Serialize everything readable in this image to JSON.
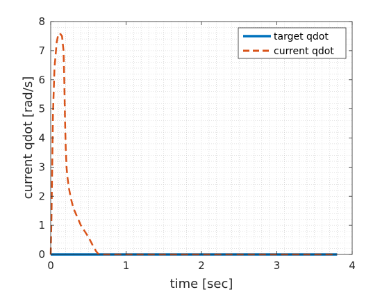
{
  "chart_data": {
    "type": "line",
    "xlabel": "time [sec]",
    "ylabel": "current qdot [rad/s]",
    "xlim": [
      0,
      4
    ],
    "ylim": [
      0,
      8
    ],
    "x_ticks": [
      "0",
      "1",
      "2",
      "3",
      "4"
    ],
    "y_ticks": [
      "0",
      "1",
      "2",
      "3",
      "4",
      "5",
      "6",
      "7",
      "8"
    ],
    "grid": "minor dotted",
    "legend_position": "top-right",
    "series": [
      {
        "name": "target qdot",
        "color": "#0072bd",
        "style": "solid",
        "x": [
          0,
          3.8
        ],
        "y": [
          0,
          0
        ]
      },
      {
        "name": "current qdot",
        "color": "#d95319",
        "style": "dashed",
        "x": [
          0,
          0.01,
          0.02,
          0.03,
          0.05,
          0.08,
          0.1,
          0.12,
          0.15,
          0.17,
          0.18,
          0.19,
          0.2,
          0.21,
          0.22,
          0.24,
          0.27,
          0.3,
          0.35,
          0.4,
          0.45,
          0.5,
          0.55,
          0.6,
          0.63,
          0.65,
          0.75,
          1.0,
          1.5,
          2.0,
          2.5,
          3.0,
          3.5,
          3.8
        ],
        "y": [
          0,
          1.2,
          3.0,
          4.8,
          6.4,
          7.3,
          7.55,
          7.6,
          7.5,
          7.0,
          6.0,
          4.6,
          3.6,
          3.0,
          2.7,
          2.3,
          1.9,
          1.6,
          1.3,
          1.0,
          0.8,
          0.6,
          0.35,
          0.12,
          0.02,
          0.0,
          0.0,
          0.0,
          0.0,
          0.0,
          0.0,
          0.0,
          0.0,
          0.0
        ]
      }
    ]
  }
}
